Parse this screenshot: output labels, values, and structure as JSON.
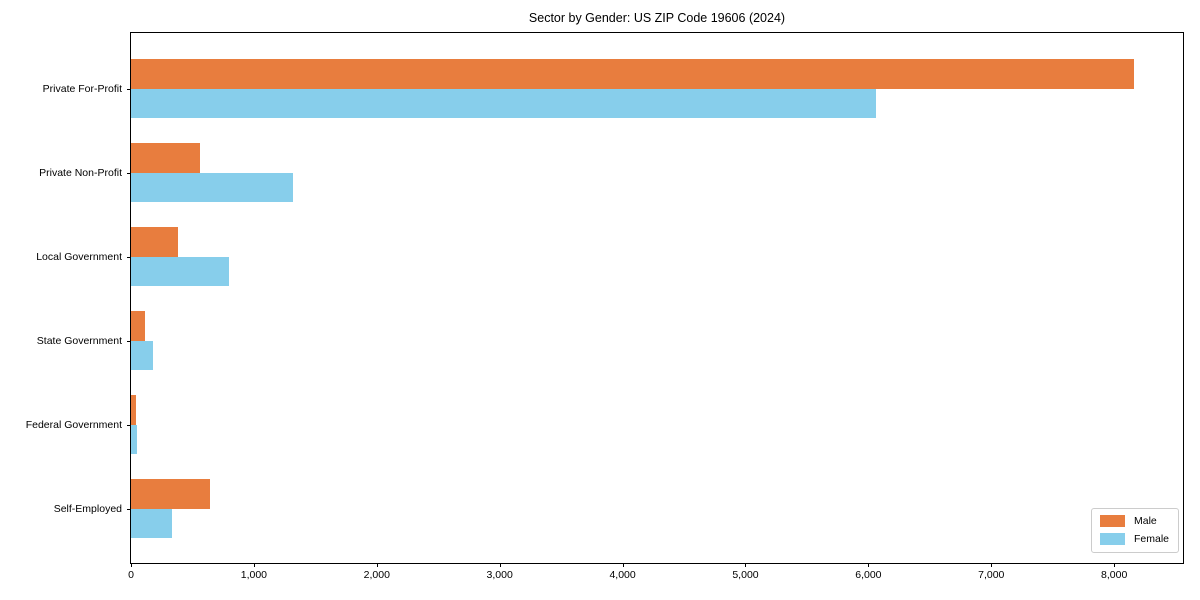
{
  "chart_data": {
    "type": "bar",
    "orientation": "horizontal",
    "title": "Sector by Gender: US ZIP Code 19606 (2024)",
    "xlabel": "",
    "ylabel": "",
    "categories": [
      "Private For-Profit",
      "Private Non-Profit",
      "Local Government",
      "State Government",
      "Federal Government",
      "Self-Employed"
    ],
    "series": [
      {
        "name": "Male",
        "color": "#e87d3e",
        "values": [
          8160,
          565,
          385,
          115,
          40,
          645
        ]
      },
      {
        "name": "Female",
        "color": "#87ceeb",
        "values": [
          6060,
          1320,
          795,
          175,
          45,
          335
        ]
      }
    ],
    "xlim": [
      0,
      8560
    ],
    "xticks": [
      0,
      1000,
      2000,
      3000,
      4000,
      5000,
      6000,
      7000,
      8000
    ],
    "xtick_labels": [
      "0",
      "1,000",
      "2,000",
      "3,000",
      "4,000",
      "5,000",
      "6,000",
      "7,000",
      "8,000"
    ],
    "grid": false,
    "legend": {
      "position": "lower right",
      "entries": [
        "Male",
        "Female"
      ]
    },
    "colors": {
      "spine": "#000000",
      "background": "#ffffff",
      "legend_border": "#cccccc"
    }
  }
}
